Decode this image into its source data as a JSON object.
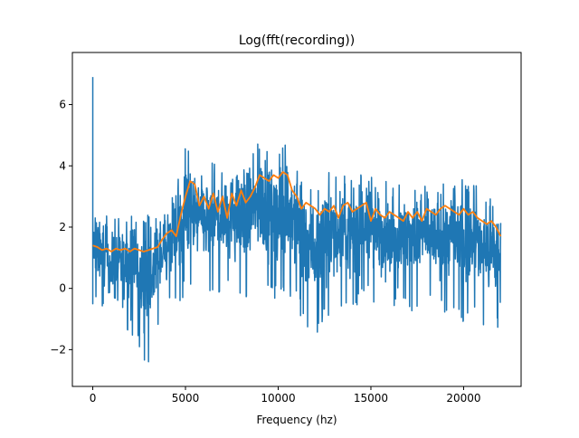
{
  "chart_data": {
    "type": "line",
    "title": "Log(fft(recording))",
    "xlabel": "Frequency (hz)",
    "ylabel": "",
    "xlim": [
      -1100,
      23100
    ],
    "ylim": [
      -3.2,
      7.7
    ],
    "xticks": [
      0,
      5000,
      10000,
      15000,
      20000
    ],
    "xtick_labels": [
      "0",
      "5000",
      "10000",
      "15000",
      "20000"
    ],
    "yticks": [
      -2,
      0,
      2,
      4,
      6
    ],
    "ytick_labels": [
      "−2",
      "0",
      "2",
      "4",
      "6"
    ],
    "grid": false,
    "legend": null,
    "series": [
      {
        "color": "#1f77b4",
        "style": "noisy",
        "envelope": {
          "x": [
            0,
            500,
            1000,
            1500,
            2000,
            2500,
            3000,
            3500,
            4000,
            4500,
            5000,
            5500,
            6000,
            6500,
            7000,
            7500,
            8000,
            8500,
            9000,
            9500,
            10000,
            10500,
            11000,
            11500,
            12000,
            12500,
            13000,
            13500,
            14000,
            14500,
            15000,
            15500,
            16000,
            16500,
            17000,
            17500,
            18000,
            18500,
            19000,
            19500,
            20000,
            20500,
            21000,
            21500,
            22000
          ],
          "upper": [
            2.4,
            2.4,
            2.4,
            2.4,
            2.4,
            2.4,
            2.4,
            2.4,
            2.9,
            3.6,
            4.6,
            4.3,
            4.2,
            4.2,
            4.4,
            4.3,
            4.4,
            4.7,
            5.0,
            4.9,
            4.8,
            4.9,
            4.5,
            3.9,
            3.9,
            3.9,
            3.7,
            3.8,
            3.6,
            3.8,
            3.9,
            3.6,
            3.5,
            3.4,
            3.4,
            3.4,
            3.5,
            3.6,
            3.5,
            3.7,
            3.6,
            3.5,
            3.2,
            3.0,
            3.0
          ],
          "lower": [
            -0.5,
            -0.8,
            -1.5,
            -1.7,
            -1.3,
            -2.2,
            -2.7,
            -1.3,
            -0.8,
            -0.6,
            -0.3,
            -0.3,
            -0.5,
            -0.5,
            -0.3,
            -0.2,
            -0.6,
            -0.3,
            -0.1,
            -0.3,
            -0.5,
            -0.3,
            -0.6,
            -1.3,
            -1.9,
            -1.2,
            -0.8,
            -0.6,
            -1.0,
            -0.6,
            -0.3,
            -0.8,
            -0.6,
            -1.1,
            -0.7,
            -0.8,
            -0.6,
            -0.9,
            -1.0,
            -0.8,
            -1.1,
            -0.8,
            -1.2,
            -1.4,
            -1.4
          ]
        },
        "peak": {
          "x": 0,
          "y": 6.9
        }
      },
      {
        "color": "#ff7f0e",
        "style": "smooth",
        "x": [
          0,
          250,
          500,
          750,
          1000,
          1250,
          1500,
          1750,
          2000,
          2250,
          2500,
          2750,
          3000,
          3250,
          3500,
          3750,
          4000,
          4250,
          4500,
          4750,
          5000,
          5250,
          5500,
          5750,
          6000,
          6250,
          6500,
          6750,
          7000,
          7250,
          7500,
          7750,
          8000,
          8250,
          8500,
          8750,
          9000,
          9250,
          9500,
          9750,
          10000,
          10250,
          10500,
          10750,
          11000,
          11250,
          11500,
          11750,
          12000,
          12250,
          12500,
          12750,
          13000,
          13250,
          13500,
          13750,
          14000,
          14250,
          14500,
          14750,
          15000,
          15250,
          15500,
          15750,
          16000,
          16250,
          16500,
          16750,
          17000,
          17250,
          17500,
          17750,
          18000,
          18250,
          18500,
          18750,
          19000,
          19250,
          19500,
          19750,
          20000,
          20250,
          20500,
          20750,
          21000,
          21250,
          21500,
          21750,
          22000
        ],
        "y": [
          1.4,
          1.35,
          1.25,
          1.3,
          1.2,
          1.3,
          1.25,
          1.3,
          1.2,
          1.3,
          1.25,
          1.2,
          1.25,
          1.3,
          1.35,
          1.6,
          1.8,
          1.9,
          1.7,
          2.4,
          3.0,
          3.5,
          3.4,
          2.7,
          3.0,
          2.6,
          3.1,
          2.5,
          3.0,
          2.3,
          3.1,
          2.7,
          3.2,
          2.8,
          3.0,
          3.3,
          3.7,
          3.6,
          3.5,
          3.7,
          3.6,
          3.8,
          3.7,
          3.2,
          3.0,
          2.6,
          2.8,
          2.7,
          2.6,
          2.4,
          2.6,
          2.5,
          2.7,
          2.3,
          2.7,
          2.8,
          2.5,
          2.6,
          2.7,
          2.8,
          2.2,
          2.6,
          2.4,
          2.3,
          2.5,
          2.4,
          2.3,
          2.2,
          2.5,
          2.3,
          2.5,
          2.2,
          2.6,
          2.5,
          2.4,
          2.6,
          2.7,
          2.6,
          2.5,
          2.4,
          2.6,
          2.4,
          2.5,
          2.3,
          2.2,
          2.1,
          2.2,
          2.0,
          1.7
        ]
      }
    ]
  }
}
